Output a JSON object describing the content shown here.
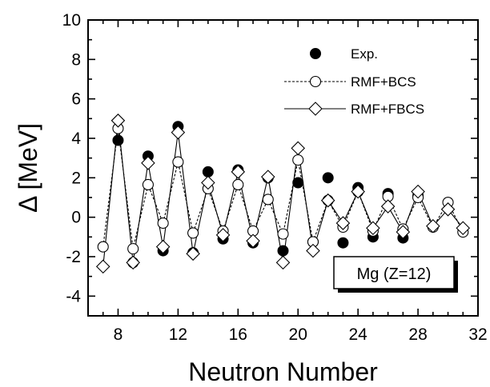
{
  "chart_data": {
    "type": "line",
    "xlabel": "Neutron Number",
    "ylabel": "Δ [MeV]",
    "xlim": [
      6,
      32
    ],
    "ylim": [
      -5,
      10
    ],
    "xticks": [
      8,
      12,
      16,
      20,
      24,
      28,
      32
    ],
    "yticks": [
      -4,
      -2,
      0,
      2,
      4,
      6,
      8,
      10
    ],
    "legend_position": "top-right",
    "annotation": "Mg (Z=12)",
    "series": [
      {
        "name": "Exp.",
        "style": "filled-circle",
        "x": [
          8,
          9,
          10,
          11,
          12,
          13,
          14,
          15,
          16,
          17,
          18,
          19,
          20,
          21,
          22,
          23,
          24,
          25,
          26,
          27,
          28
        ],
        "y": [
          3.9,
          -2.3,
          3.1,
          -1.7,
          4.6,
          -1.8,
          2.3,
          -1.1,
          2.4,
          -1.3,
          2.0,
          -1.7,
          1.75,
          -1.25,
          2.0,
          -1.3,
          1.5,
          -1.0,
          1.2,
          -1.05,
          1.1
        ]
      },
      {
        "name": "RMF+BCS",
        "style": "open-circle-dashed",
        "x": [
          7,
          8,
          9,
          10,
          11,
          12,
          13,
          14,
          15,
          16,
          17,
          18,
          19,
          20,
          21,
          22,
          23,
          24,
          25,
          26,
          27,
          28,
          29,
          30,
          31
        ],
        "y": [
          -1.5,
          4.5,
          -1.6,
          1.65,
          -0.3,
          2.8,
          -0.8,
          1.45,
          -0.7,
          1.65,
          -0.7,
          0.9,
          -0.85,
          2.9,
          -1.25,
          0.85,
          -0.5,
          1.3,
          -0.7,
          1.05,
          -0.6,
          1.0,
          -0.5,
          0.75,
          -0.75
        ]
      },
      {
        "name": "RMF+FBCS",
        "style": "open-diamond-solid",
        "x": [
          7,
          8,
          9,
          10,
          11,
          12,
          13,
          14,
          15,
          16,
          17,
          18,
          19,
          20,
          21,
          22,
          23,
          24,
          25,
          26,
          27,
          28,
          29,
          30,
          31
        ],
        "y": [
          -2.5,
          4.9,
          -2.3,
          2.75,
          -1.5,
          4.3,
          -1.85,
          1.75,
          -0.9,
          2.3,
          -1.2,
          2.05,
          -2.3,
          3.5,
          -1.7,
          0.85,
          -0.3,
          1.3,
          -0.55,
          0.55,
          -0.75,
          1.3,
          -0.45,
          0.4,
          -0.55
        ]
      }
    ]
  }
}
